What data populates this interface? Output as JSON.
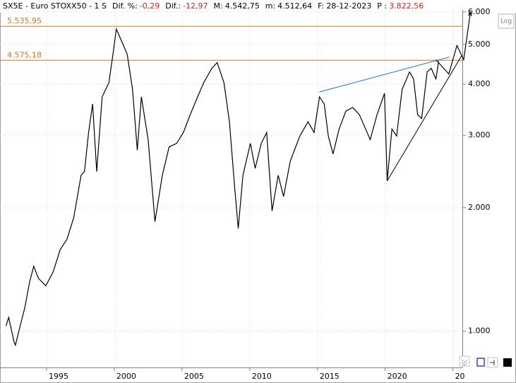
{
  "chart_data": {
    "type": "line",
    "title": "SX5E - Euro STOXX50 - 1 S",
    "header_fields": [
      {
        "label": "Dif. %:",
        "value": "-0,29",
        "color": "#e02020"
      },
      {
        "label": "Dif.:",
        "value": "-12,97",
        "color": "#e02020"
      },
      {
        "label": "M:",
        "value": "4.542,75",
        "color": "#000000"
      },
      {
        "label": "m:",
        "value": "4.512,64",
        "color": "#000000"
      },
      {
        "label": "F:",
        "value": "28-12-2023",
        "color": "#000000"
      },
      {
        "label": "P :",
        "value": "3.822,56",
        "color": "#e02020"
      }
    ],
    "scale_button": "Log",
    "log_scale": true,
    "grid": true,
    "x": [
      1992.0,
      1992.2,
      1992.6,
      1992.7,
      1993.0,
      1993.4,
      1993.75,
      1994.05,
      1994.4,
      1994.95,
      1995.5,
      1996.0,
      1996.5,
      1997.0,
      1997.55,
      1997.8,
      1998.1,
      1998.4,
      1998.7,
      1999.1,
      1999.6,
      1999.9,
      2000.15,
      2000.5,
      2000.95,
      2001.35,
      2001.7,
      2002.0,
      2002.5,
      2003.0,
      2003.55,
      2004.05,
      2004.6,
      2005.1,
      2005.6,
      2006.15,
      2006.6,
      2007.2,
      2007.6,
      2008.1,
      2008.5,
      2008.9,
      2009.15,
      2009.5,
      2010.05,
      2010.4,
      2010.85,
      2011.25,
      2011.65,
      2012.1,
      2012.5,
      2013.0,
      2013.7,
      2014.3,
      2014.75,
      2015.15,
      2015.5,
      2015.8,
      2016.15,
      2016.6,
      2017.1,
      2017.6,
      2018.1,
      2018.9,
      2019.4,
      2019.95,
      2020.15,
      2020.5,
      2020.85,
      2021.25,
      2021.8,
      2022.1,
      2022.4,
      2022.7,
      2023.1,
      2023.4,
      2023.75,
      2023.95
    ],
    "series": [
      {
        "color": "#000000",
        "values": [
          1030,
          1080,
          940,
          925,
          1015,
          1145,
          1320,
          1440,
          1345,
          1290,
          1400,
          1580,
          1675,
          1890,
          2400,
          2450,
          3050,
          3580,
          2450,
          3725,
          4035,
          4730,
          5450,
          5130,
          4730,
          3880,
          2760,
          3725,
          2930,
          1850,
          2400,
          2815,
          2870,
          3050,
          3370,
          3725,
          4035,
          4375,
          4515,
          4035,
          3240,
          2215,
          1780,
          2400,
          2870,
          2495,
          2870,
          3050,
          1965,
          2400,
          2130,
          2600,
          2990,
          3240,
          3050,
          3725,
          3580,
          2990,
          2705,
          3110,
          3440,
          3510,
          3370,
          2930,
          3370,
          3800,
          2325,
          3110,
          2990,
          3880,
          4285,
          4120,
          3370,
          3300,
          4285,
          4375,
          4120,
          4550
        ]
      }
    ],
    "levels": [
      {
        "value": 5535.95,
        "label": "5.535,95"
      },
      {
        "value": 4575.18,
        "label": "4.575,18"
      }
    ],
    "level_color": "#c8782e",
    "trendlines": [
      {
        "x": [
          2015.15,
          2024.75
        ],
        "values": [
          3830,
          4660
        ],
        "color": "#1f6fc2"
      },
      {
        "x": [
          2020.15,
          2025.65
        ],
        "values": [
          2325,
          4695
        ],
        "color": "#000000"
      }
    ],
    "projection": {
      "x": [
        2023.75,
        2024.7,
        2025.3,
        2025.8,
        2026.3
      ],
      "values": [
        4590,
        4235,
        4970,
        4590,
        6000
      ],
      "color": "#000000"
    },
    "xlim": [
      1991.56,
      2025.7
    ],
    "ylim": [
      816,
      6070
    ],
    "xticks": [
      1995,
      2000,
      2005,
      2010,
      2015,
      2020,
      {
        "value": 2025,
        "label": "20"
      }
    ],
    "yticks": [
      {
        "value": 1000,
        "label": "1.000"
      },
      {
        "value": 2000,
        "label": "2.000"
      },
      {
        "value": 3000,
        "label": "3.000"
      },
      {
        "value": 4000,
        "label": "4.000"
      },
      {
        "value": 5000,
        "label": "5.000"
      },
      {
        "value": 6000,
        "label": "6.000"
      }
    ]
  }
}
